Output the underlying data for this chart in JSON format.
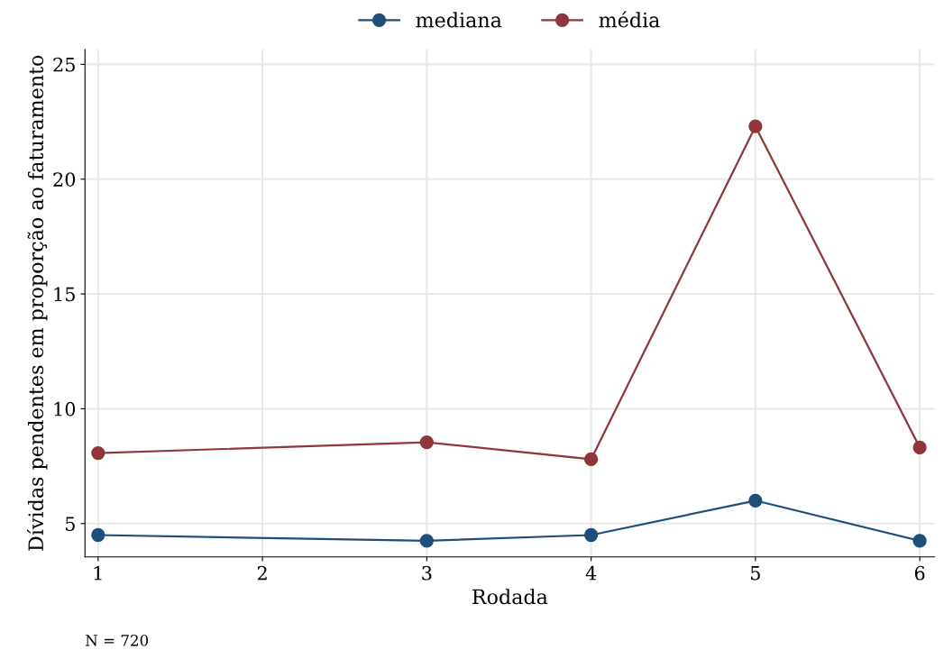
{
  "chart_data": {
    "type": "line",
    "xlabel": "Rodada",
    "ylabel": "Dívidas pendentes em proporção ao faturamento",
    "x": [
      1,
      3,
      4,
      5,
      6
    ],
    "series": [
      {
        "name": "mediana",
        "color": "#1f4e79",
        "values": [
          4.5,
          4.25,
          4.5,
          6.0,
          4.25
        ]
      },
      {
        "name": "média",
        "color": "#90353b",
        "values": [
          8.07,
          8.54,
          7.8,
          22.3,
          8.31
        ]
      }
    ],
    "xlim": [
      0.92,
      6.09
    ],
    "xticks": [
      1,
      2,
      3,
      4,
      5,
      6
    ],
    "ylim": [
      3.55,
      25.65
    ],
    "yticks": [
      5,
      10,
      15,
      20,
      25
    ],
    "grid": true,
    "legend": "top",
    "marker": "circle",
    "line_style": "solid",
    "annotations": [
      "N = 720"
    ]
  }
}
